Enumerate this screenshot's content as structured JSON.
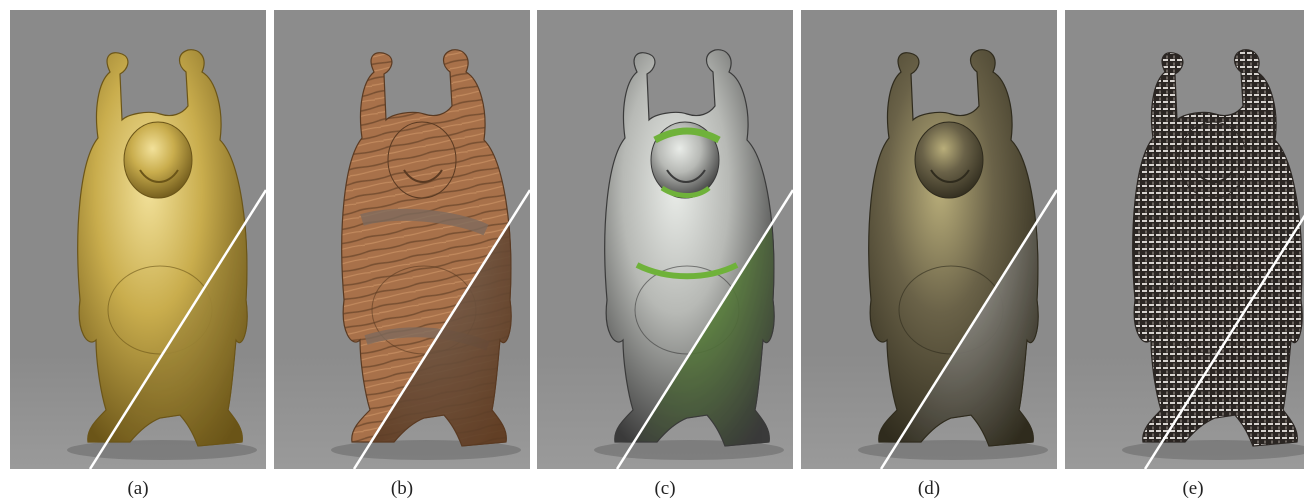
{
  "figure": {
    "panels": [
      {
        "caption": "(a)",
        "material": "gold-metal",
        "colors": {
          "bg": "#8a8a8a",
          "main": "#c9ad4d",
          "light": "#f2e19a",
          "dark": "#6b5518",
          "alt": "#d7bd5c"
        }
      },
      {
        "caption": "(b)",
        "material": "wood",
        "colors": {
          "bg": "#8c8c8c",
          "main": "#a8714a",
          "light": "#d49b6a",
          "dark": "#5a3a22",
          "alt": "#7e6a5c"
        }
      },
      {
        "caption": "(c)",
        "material": "glass-with-green",
        "colors": {
          "bg": "#8d8d8d",
          "main": "#b7b9b5",
          "light": "#e9ece8",
          "dark": "#3a3a3a",
          "alt": "#6fb23a"
        }
      },
      {
        "caption": "(d)",
        "material": "dark-olive-metal",
        "colors": {
          "bg": "#8b8b8b",
          "main": "#6a6248",
          "light": "#b9ae7a",
          "dark": "#2f2b1d",
          "alt": "#c5c5c5"
        }
      },
      {
        "caption": "(e)",
        "material": "woven-mesh",
        "colors": {
          "bg": "#8c8c8c",
          "main": "#6c6560",
          "light": "#d8d4d0",
          "dark": "#2b2623",
          "alt": "#efefef"
        }
      }
    ]
  }
}
